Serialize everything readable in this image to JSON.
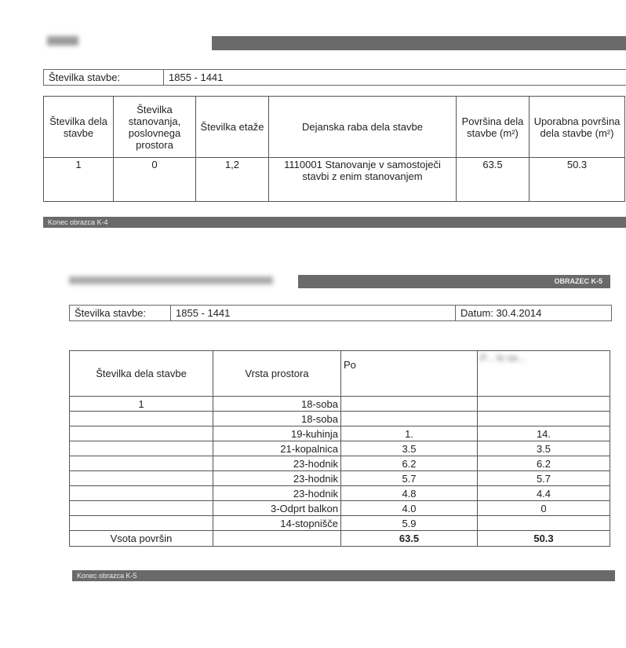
{
  "form_k4": {
    "building_label": "Številka stavbe:",
    "building_value": "1855 - 1441",
    "headers": [
      "Številka dela stavbe",
      "Številka stanovanja, poslovnega prostora",
      "Številka etaže",
      "Dejanska raba dela stavbe",
      "Površina dela stavbe (m²)",
      "Uporabna površina dela stavbe (m²)"
    ],
    "row": [
      "1",
      "0",
      "1,2",
      "1110001 Stanovanje v samostoječi stavbi z enim stanovanjem",
      "63.5",
      "50.3"
    ],
    "footer": "Konec obrazca K-4"
  },
  "form_k5": {
    "title": "OBRAZEC K-5",
    "building_label": "Številka stavbe:",
    "building_value": "1855 - 1441",
    "date": "Datum: 30.4.2014",
    "headers": [
      "Številka dela stavbe",
      "Vrsta prostora",
      "Po",
      "P... ki se..."
    ],
    "rows": [
      [
        "1",
        "18-soba",
        "",
        ""
      ],
      [
        "",
        "18-soba",
        "",
        ""
      ],
      [
        "",
        "19-kuhinja",
        "1.",
        "14."
      ],
      [
        "",
        "21-kopalnica",
        "3.5",
        "3.5"
      ],
      [
        "",
        "23-hodnik",
        "6.2",
        "6.2"
      ],
      [
        "",
        "23-hodnik",
        "5.7",
        "5.7"
      ],
      [
        "",
        "23-hodnik",
        "4.8",
        "4.4"
      ],
      [
        "",
        "3-Odprt balkon",
        "4.0",
        "0"
      ],
      [
        "",
        "14-stopnišče",
        "5.9",
        ""
      ]
    ],
    "total_label": "Vsota površin",
    "total_area": "63.5",
    "total_usable": "50.3",
    "footer": "Konec obrazca K-5"
  }
}
